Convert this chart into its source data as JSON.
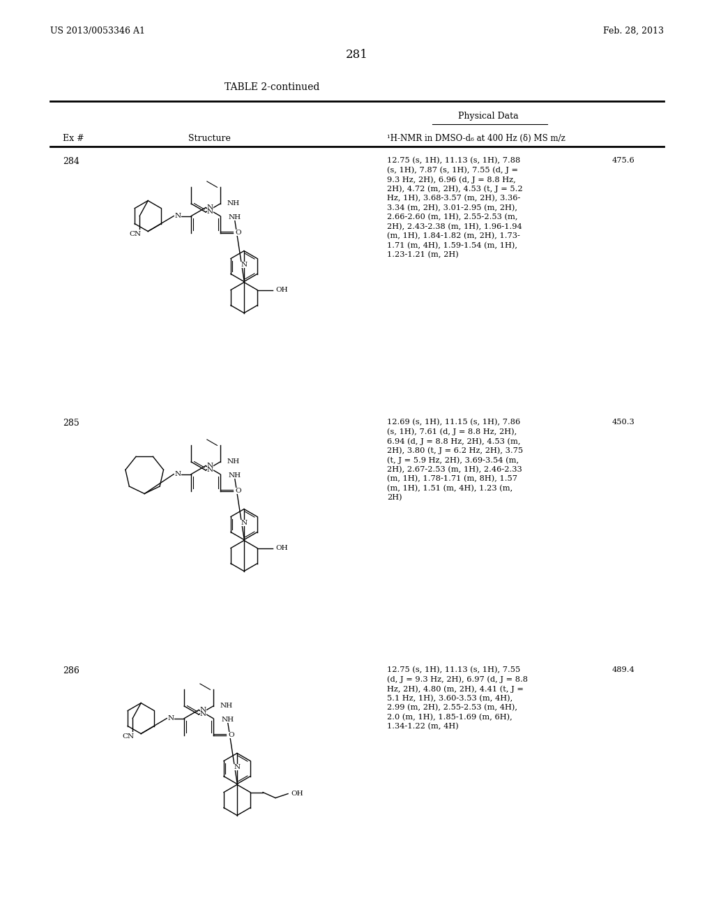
{
  "bg_color": "#ffffff",
  "header_left": "US 2013/0053346 A1",
  "header_right": "Feb. 28, 2013",
  "page_number": "281",
  "table_title": "TABLE 2-continued",
  "col_ex": "Ex #",
  "col_struct": "Structure",
  "col_nmr": "¹H-NMR in DMSO-d₆ at 400 Hz (δ) MS m/z",
  "physical_data_label": "Physical Data",
  "rows": [
    {
      "ex": "284",
      "nmr_line1": "12.75 (s, 1H), 11.13 (s, 1H), 7.88",
      "nmr_line2": "(s, 1H), 7.87 (s, 1H), 7.55 (d, J =",
      "nmr_line3": "9.3 Hz, 2H), 6.96 (d, J = 8.8 Hz,",
      "nmr_line4": "2H), 4.72 (m, 2H), 4.53 (t, J = 5.2",
      "nmr_line5": "Hz, 1H), 3.68-3.57 (m, 2H), 3.36-",
      "nmr_line6": "3.34 (m, 2H), 3.01-2.95 (m, 2H),",
      "nmr_line7": "2.66-2.60 (m, 1H), 2.55-2.53 (m,",
      "nmr_line8": "2H), 2.43-2.38 (m, 1H), 1.96-1.94",
      "nmr_line9": "(m, 1H), 1.84-1.82 (m, 2H), 1.73-",
      "nmr_line10": "1.71 (m, 4H), 1.59-1.54 (m, 1H),",
      "nmr_line11": "1.23-1.21 (m, 2H)",
      "ms": "475.6",
      "nmr_lines": 11
    },
    {
      "ex": "285",
      "nmr_line1": "12.69 (s, 1H), 11.15 (s, 1H), 7.86",
      "nmr_line2": "(s, 1H), 7.61 (d, J = 8.8 Hz, 2H),",
      "nmr_line3": "6.94 (d, J = 8.8 Hz, 2H), 4.53 (m,",
      "nmr_line4": "2H), 3.80 (t, J = 6.2 Hz, 2H), 3.75",
      "nmr_line5": "(t, J = 5.9 Hz, 2H), 3.69-3.54 (m,",
      "nmr_line6": "2H), 2.67-2.53 (m, 1H), 2.46-2.33",
      "nmr_line7": "(m, 1H), 1.78-1.71 (m, 8H), 1.57",
      "nmr_line8": "(m, 1H), 1.51 (m, 4H), 1.23 (m,",
      "nmr_line9": "2H)",
      "ms": "450.3",
      "nmr_lines": 9
    },
    {
      "ex": "286",
      "nmr_line1": "12.75 (s, 1H), 11.13 (s, 1H), 7.55",
      "nmr_line2": "(d, J = 9.3 Hz, 2H), 6.97 (d, J = 8.8",
      "nmr_line3": "Hz, 2H), 4.80 (m, 2H), 4.41 (t, J =",
      "nmr_line4": "5.1 Hz, 1H), 3.60-3.53 (m, 4H),",
      "nmr_line5": "2.99 (m, 2H), 2.55-2.53 (m, 4H),",
      "nmr_line6": "2.0 (m, 1H), 1.85-1.69 (m, 6H),",
      "nmr_line7": "1.34-1.22 (m, 4H)",
      "ms": "489.4",
      "nmr_lines": 7
    }
  ]
}
